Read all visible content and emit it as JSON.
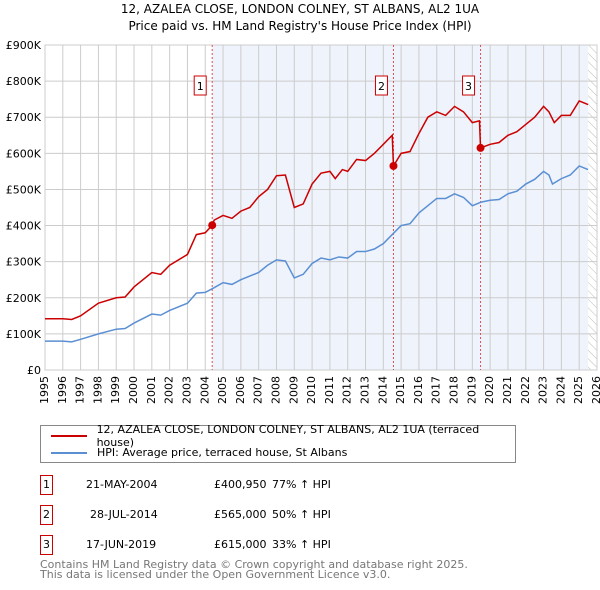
{
  "title": "12, AZALEA CLOSE, LONDON COLNEY, ST ALBANS, AL2 1UA",
  "subtitle": "Price paid vs. HM Land Registry's House Price Index (HPI)",
  "colors": {
    "property": "#cc0000",
    "hpi": "#5b8fd4",
    "shade": "#eef3fc",
    "grid": "#cccccc"
  },
  "chart_data": {
    "type": "line",
    "title": "12, AZALEA CLOSE, LONDON COLNEY, ST ALBANS, AL2 1UA",
    "xlim": [
      1995,
      2026
    ],
    "ylim": [
      0,
      900000
    ],
    "x_ticks": [
      "1995",
      "1996",
      "1997",
      "1998",
      "1999",
      "2000",
      "2001",
      "2002",
      "2003",
      "2004",
      "2005",
      "2006",
      "2007",
      "2008",
      "2009",
      "2010",
      "2011",
      "2012",
      "2013",
      "2014",
      "2015",
      "2016",
      "2017",
      "2018",
      "2019",
      "2020",
      "2021",
      "2022",
      "2023",
      "2024",
      "2025",
      "2026"
    ],
    "y_ticks": [
      {
        "v": 0,
        "l": "£0"
      },
      {
        "v": 100000,
        "l": "£100K"
      },
      {
        "v": 200000,
        "l": "£200K"
      },
      {
        "v": 300000,
        "l": "£300K"
      },
      {
        "v": 400000,
        "l": "£400K"
      },
      {
        "v": 500000,
        "l": "£500K"
      },
      {
        "v": 600000,
        "l": "£600K"
      },
      {
        "v": 700000,
        "l": "£700K"
      },
      {
        "v": 800000,
        "l": "£800K"
      },
      {
        "v": 900000,
        "l": "£900K"
      }
    ],
    "grid": true,
    "series": [
      {
        "name": "12, AZALEA CLOSE, LONDON COLNEY, ST ALBANS, AL2 1UA (terraced house)",
        "color": "#cc0000",
        "x": [
          1995,
          1996,
          1996.5,
          1997,
          1998,
          1999,
          1999.5,
          2000,
          2001,
          2001.5,
          2002,
          2003,
          2003.5,
          2004,
          2004.39,
          2004.5,
          2005,
          2005.5,
          2006,
          2006.5,
          2007,
          2007.5,
          2008,
          2008.5,
          2009,
          2009.5,
          2010,
          2010.5,
          2011,
          2011.3,
          2011.7,
          2012,
          2012.5,
          2013,
          2013.5,
          2014,
          2014.5,
          2014.57,
          2015,
          2015.5,
          2016,
          2016.5,
          2017,
          2017.5,
          2018,
          2018.5,
          2019,
          2019.4,
          2019.46,
          2020,
          2020.5,
          2021,
          2021.5,
          2022,
          2022.5,
          2023,
          2023.3,
          2023.6,
          2024,
          2024.5,
          2025,
          2025.5
        ],
        "y": [
          142,
          142,
          140,
          150,
          185,
          200,
          202,
          230,
          270,
          265,
          290,
          320,
          375,
          380,
          400.95,
          415,
          428,
          420,
          440,
          450,
          480,
          500,
          538,
          540,
          450,
          460,
          515,
          545,
          550,
          530,
          555,
          550,
          583,
          580,
          600,
          625,
          650,
          565,
          600,
          605,
          655,
          700,
          715,
          705,
          730,
          715,
          685,
          690,
          615,
          625,
          630,
          650,
          660,
          680,
          700,
          730,
          715,
          685,
          705,
          705,
          745,
          735
        ]
      },
      {
        "name": "HPI: Average price, terraced house, St Albans",
        "color": "#5b8fd4",
        "x": [
          1995,
          1996,
          1996.5,
          1997,
          1998,
          1999,
          1999.5,
          2000,
          2001,
          2001.5,
          2002,
          2003,
          2003.5,
          2004,
          2004.5,
          2005,
          2005.5,
          2006,
          2007,
          2007.5,
          2008,
          2008.5,
          2009,
          2009.5,
          2010,
          2010.5,
          2011,
          2011.5,
          2012,
          2012.5,
          2013,
          2013.5,
          2014,
          2014.5,
          2015,
          2015.5,
          2016,
          2016.5,
          2017,
          2017.5,
          2018,
          2018.5,
          2019,
          2019.5,
          2020,
          2020.5,
          2021,
          2021.5,
          2022,
          2022.5,
          2023,
          2023.3,
          2023.5,
          2024,
          2024.5,
          2025,
          2025.5
        ],
        "y": [
          80,
          80,
          78,
          85,
          100,
          113,
          115,
          130,
          155,
          152,
          165,
          185,
          213,
          215,
          228,
          242,
          237,
          250,
          270,
          290,
          305,
          302,
          255,
          265,
          295,
          310,
          305,
          313,
          310,
          328,
          328,
          335,
          350,
          375,
          400,
          405,
          435,
          455,
          475,
          475,
          488,
          478,
          455,
          465,
          470,
          472,
          488,
          495,
          515,
          528,
          550,
          540,
          515,
          530,
          540,
          565,
          555
        ]
      }
    ],
    "y_unit_multiplier": 1000,
    "sales": [
      {
        "n": "1",
        "x": 2004.39,
        "y": 400950
      },
      {
        "n": "2",
        "x": 2014.57,
        "y": 565000
      },
      {
        "n": "3",
        "x": 2019.46,
        "y": 615000
      }
    ],
    "shade_from": 2004.39,
    "hatch_from": 2025.5,
    "legend_position": "below"
  },
  "legend": [
    "12, AZALEA CLOSE, LONDON COLNEY, ST ALBANS, AL2 1UA (terraced house)",
    "HPI: Average price, terraced house, St Albans"
  ],
  "transactions": [
    {
      "n": "1",
      "date": "21-MAY-2004",
      "price": "£400,950",
      "delta": "77% ↑ HPI"
    },
    {
      "n": "2",
      "date": "28-JUL-2014",
      "price": "£565,000",
      "delta": "50% ↑ HPI"
    },
    {
      "n": "3",
      "date": "17-JUN-2019",
      "price": "£615,000",
      "delta": "33% ↑ HPI"
    }
  ],
  "footer": [
    "Contains HM Land Registry data © Crown copyright and database right 2025.",
    "This data is licensed under the Open Government Licence v3.0."
  ]
}
